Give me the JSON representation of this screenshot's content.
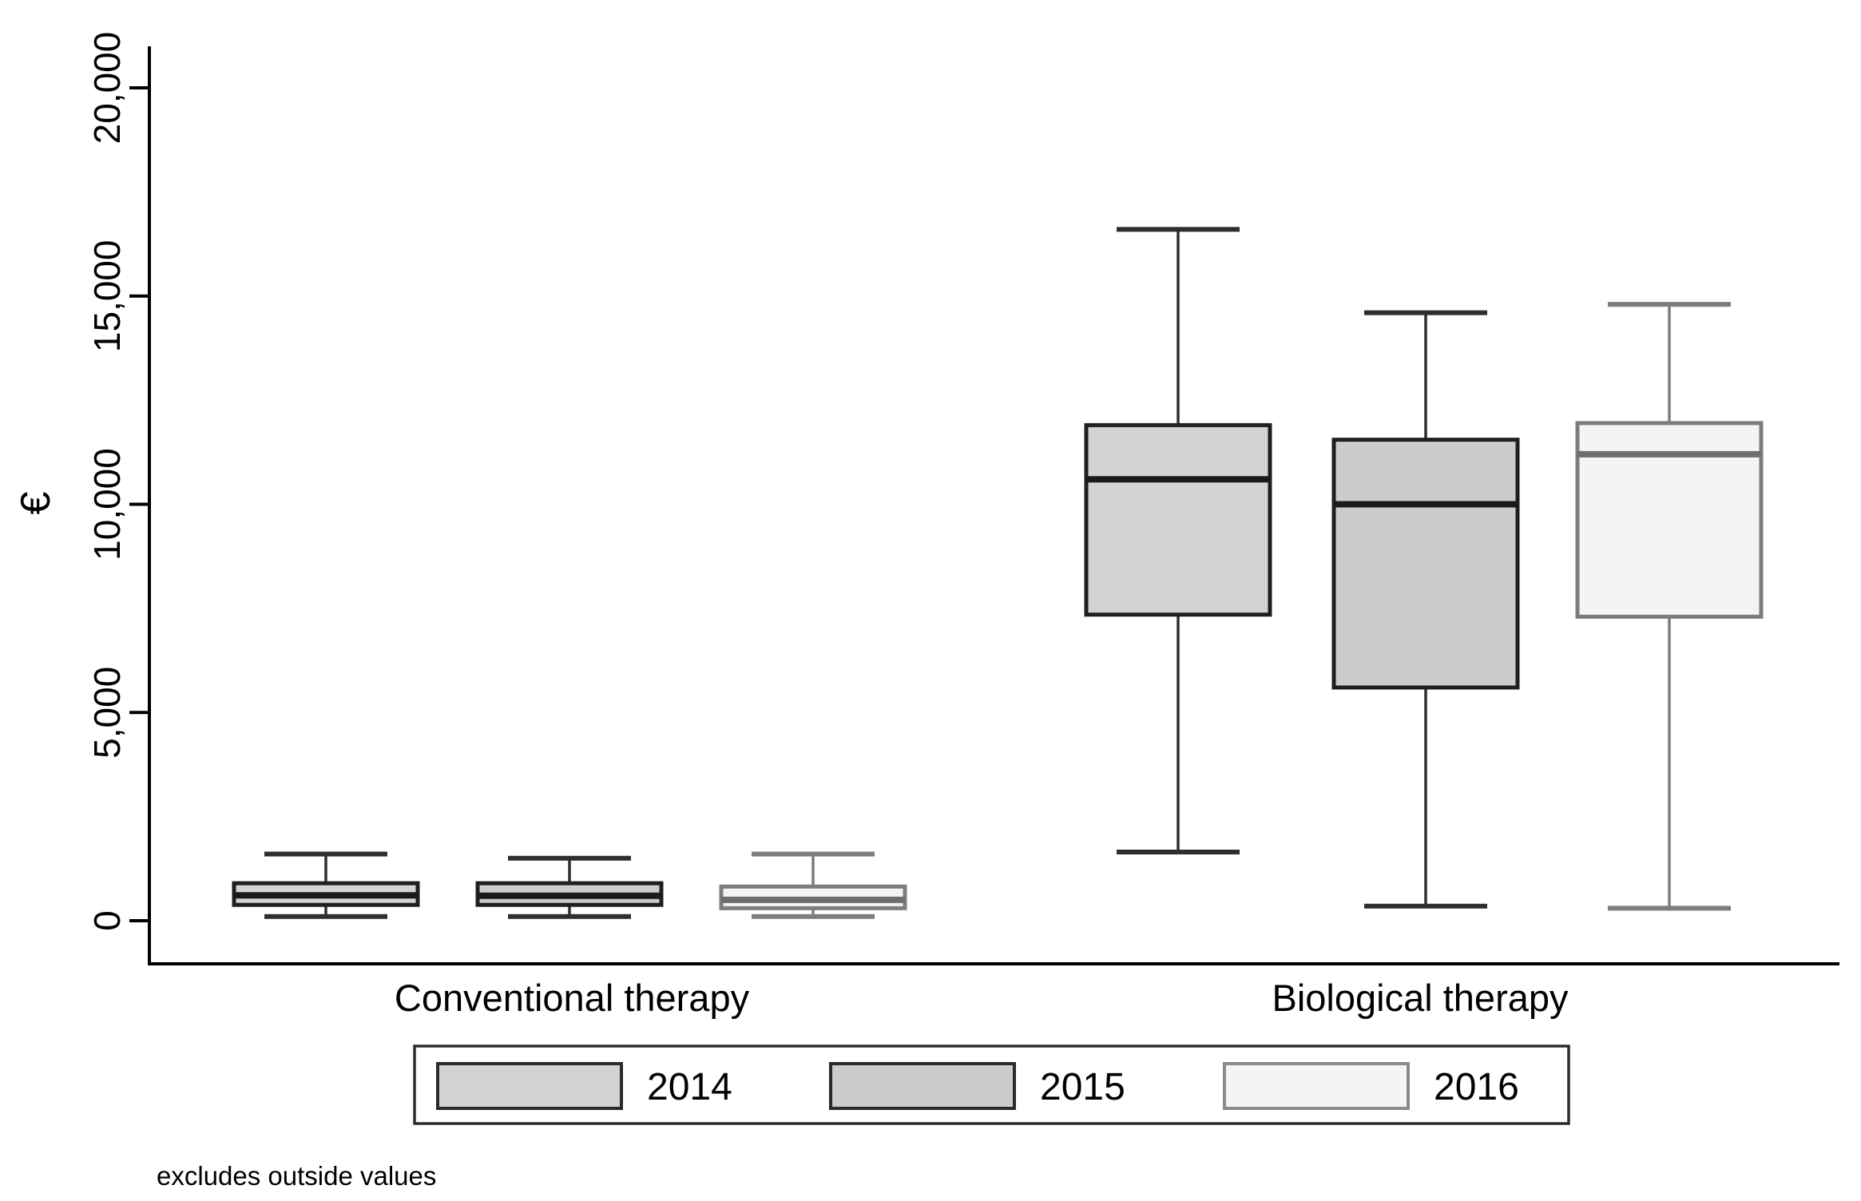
{
  "chart_data": {
    "type": "boxplot",
    "title": "",
    "ylabel": "€",
    "xlabel": "",
    "note": "excludes outside values",
    "groups": [
      "Conventional therapy",
      "Biological therapy"
    ],
    "yticks": [
      0,
      5000,
      10000,
      15000,
      20000
    ],
    "ytick_labels": [
      "0",
      "5,000",
      "10,000",
      "15,000",
      "20,000"
    ],
    "ylim": [
      0,
      21000
    ],
    "grid": false,
    "legend_position": "bottom",
    "legend_note": "boxes exclude outside values (no outlier markers drawn)",
    "series": [
      {
        "name": "2014",
        "fill": "#d3d3d3",
        "stroke": "#1f1f1f",
        "whisker_stroke": "#2e2e2e",
        "median_stroke": "#1a1a1a",
        "boxes": [
          {
            "group": "Conventional therapy",
            "low": 100,
            "q1": 380,
            "median": 610,
            "q3": 900,
            "high": 1600
          },
          {
            "group": "Biological therapy",
            "low": 1650,
            "q1": 7350,
            "median": 10600,
            "q3": 11900,
            "high": 16600
          }
        ]
      },
      {
        "name": "2015",
        "fill": "#cccccc",
        "stroke": "#1f1f1f",
        "whisker_stroke": "#2e2e2e",
        "median_stroke": "#1a1a1a",
        "boxes": [
          {
            "group": "Conventional therapy",
            "low": 100,
            "q1": 380,
            "median": 600,
            "q3": 900,
            "high": 1500
          },
          {
            "group": "Biological therapy",
            "low": 350,
            "q1": 5600,
            "median": 10000,
            "q3": 11550,
            "high": 14600
          }
        ]
      },
      {
        "name": "2016",
        "fill": "#f4f4f4",
        "stroke": "#7d7d7d",
        "whisker_stroke": "#7d7d7d",
        "median_stroke": "#6e6e6e",
        "boxes": [
          {
            "group": "Conventional therapy",
            "low": 100,
            "q1": 300,
            "median": 500,
            "q3": 820,
            "high": 1600
          },
          {
            "group": "Biological therapy",
            "low": 300,
            "q1": 7300,
            "median": 11200,
            "q3": 11950,
            "high": 14800
          }
        ]
      }
    ]
  }
}
